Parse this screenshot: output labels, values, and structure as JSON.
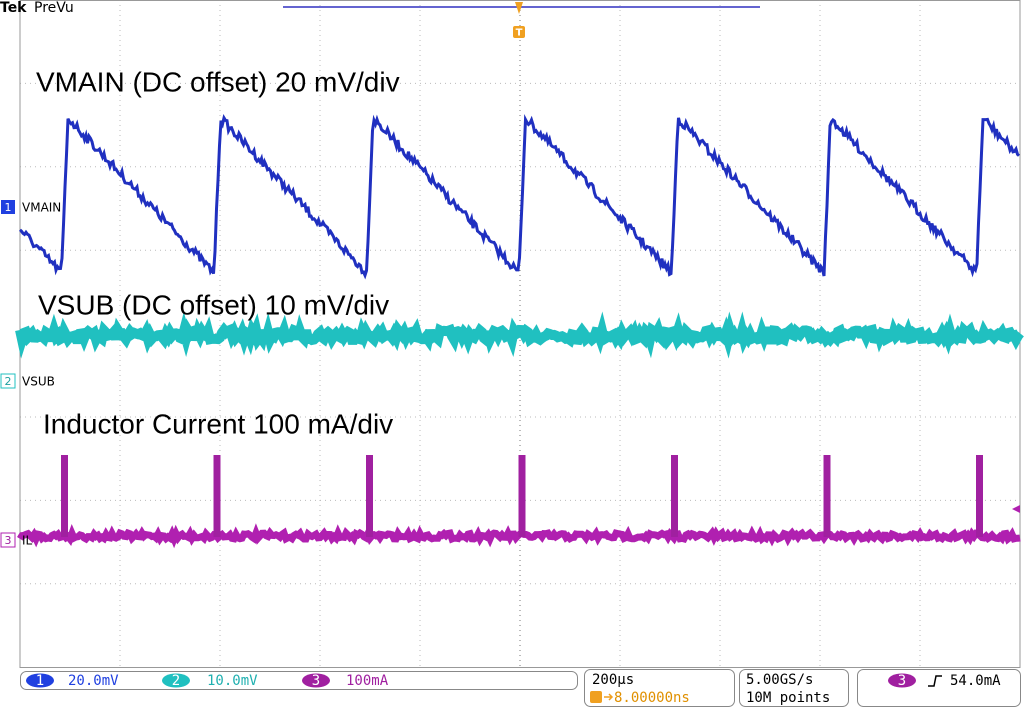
{
  "header": {
    "brand": "Tek",
    "mode": "PreVu"
  },
  "trigger_marker": "T",
  "annotations": [
    "VMAIN (DC offset) 20 mV/div",
    "VSUB (DC offset) 10 mV/div",
    "Inductor Current 100 mA/div"
  ],
  "channels": [
    {
      "number": "1",
      "label": "VMAIN"
    },
    {
      "number": "2",
      "label": "VSUB"
    },
    {
      "number": "3",
      "label": "IL"
    }
  ],
  "status": {
    "channels": [
      {
        "number": "1",
        "scale": "20.0mV"
      },
      {
        "number": "2",
        "scale": "10.0mV"
      },
      {
        "number": "3",
        "scale": "100mA"
      }
    ],
    "timebase": "200µs",
    "trigger_delay": "8.00000ns",
    "sample_rate": "5.00GS/s",
    "record_length": "10M points",
    "trigger": {
      "source": "3",
      "level": "54.0mA"
    }
  }
}
